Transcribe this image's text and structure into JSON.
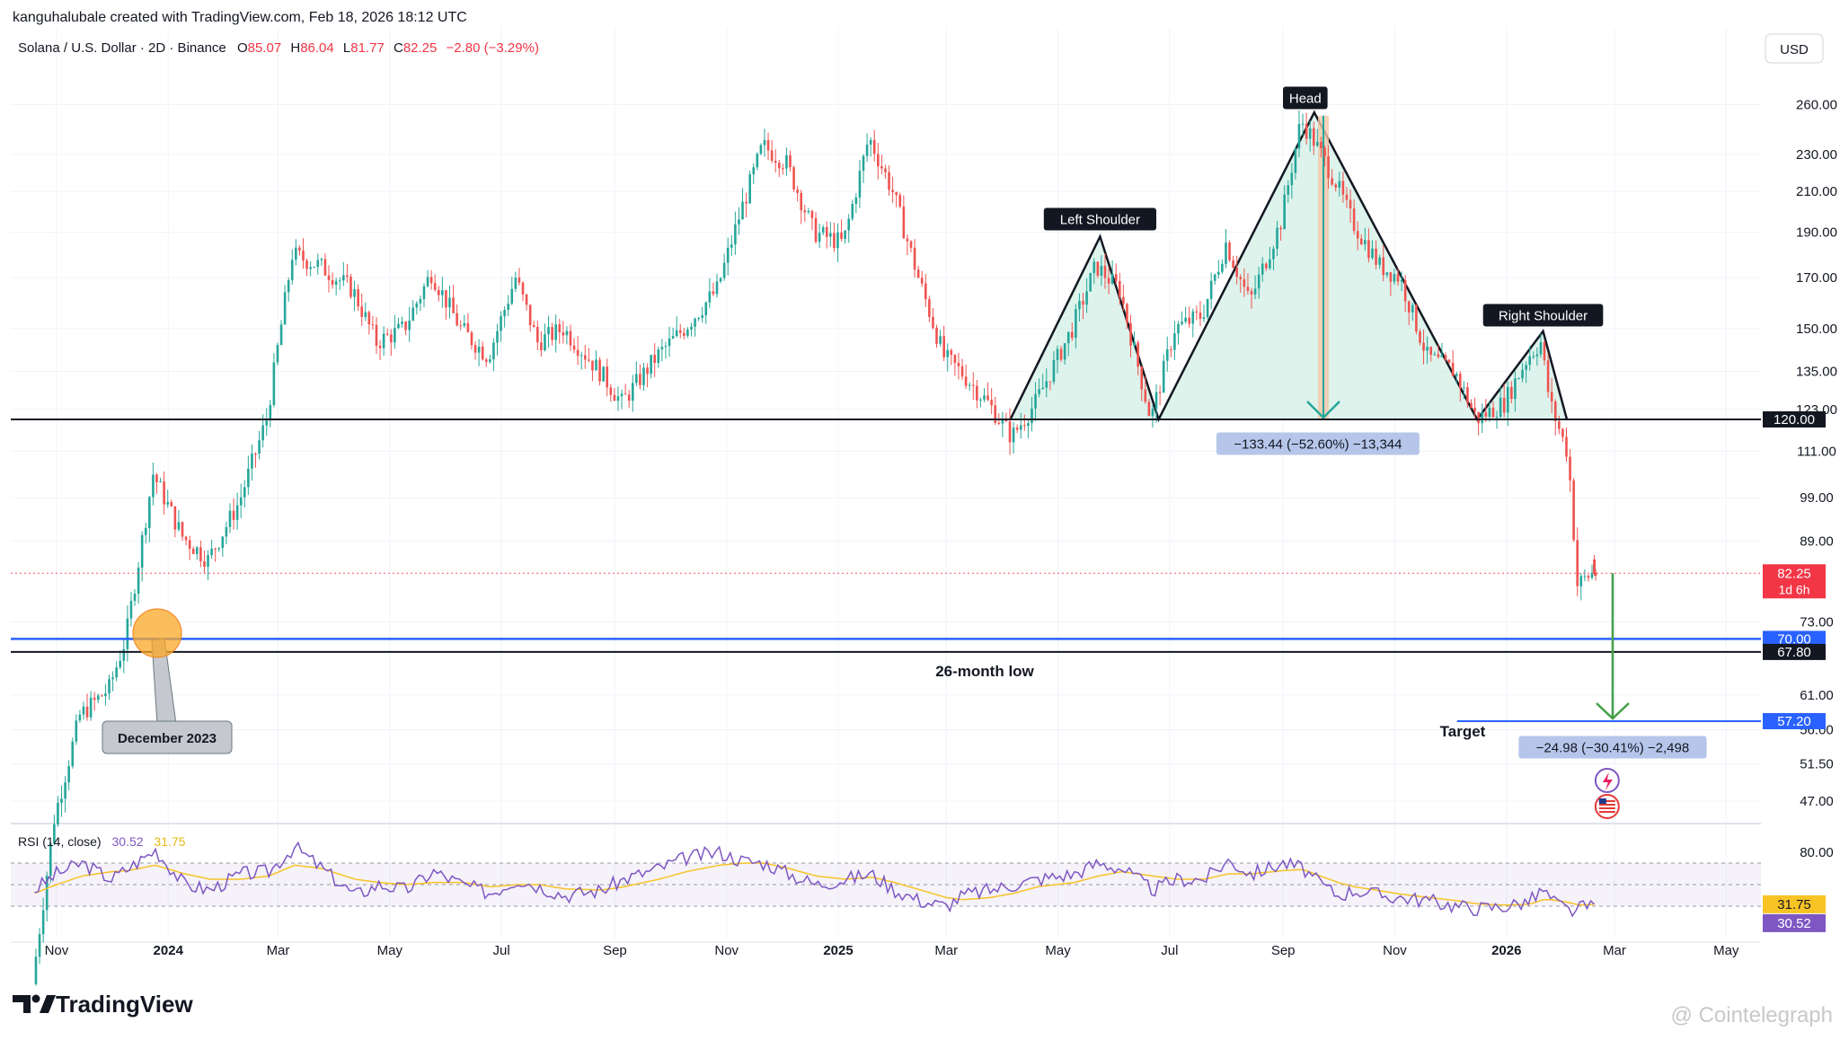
{
  "header": {
    "created_by": "kanguhalubale created with TradingView.com, Feb 18, 2026 18:12 UTC"
  },
  "legend": {
    "symbol": "Solana / U.S. Dollar · 2D · Binance",
    "open_label": "O",
    "open": "85.07",
    "high_label": "H",
    "high": "86.04",
    "low_label": "L",
    "low": "81.77",
    "close_label": "C",
    "close": "82.25",
    "change": "−2.80 (−3.29%)"
  },
  "currency_button": "USD",
  "rsi_legend": {
    "label": "RSI (14, close)",
    "rsi": "30.52",
    "ma": "31.75"
  },
  "price_labels": {
    "last_price": "82.25",
    "countdown": "1d 6h",
    "level_120": "120.00",
    "level_70": "70.00",
    "level_67": "67.80",
    "level_57": "57.20",
    "rsi_ma": "31.75",
    "rsi_val": "30.52"
  },
  "annotations": {
    "head": "Head",
    "left_shoulder": "Left Shoulder",
    "right_shoulder": "Right Shoulder",
    "measure_head": "−133.44 (−52.60%) −13,344",
    "measure_target": "−24.98 (−30.41%) −2,498",
    "low_label": "26-month low",
    "target_label": "Target",
    "callout": "December 2023"
  },
  "footer": {
    "brand": "TradingView",
    "watermark": "@ Cointelegraph"
  },
  "colors": {
    "up": "#26a69a",
    "down": "#ef5350",
    "blue_line": "#2962ff",
    "neckline": "#131722",
    "rsi": "#7e57c2",
    "rsi_ma": "#f7c325",
    "pattern_fill": "#cfeee4",
    "measure_box": "#b6c6ea"
  },
  "chart_data": [
    {
      "type": "line",
      "title": "Solana / U.S. Dollar · 2D · Binance",
      "series": [
        {
          "name": "Solana / U.S. Dollar",
          "x": [
            "2023-10-20",
            "2023-11-01",
            "2023-11-15",
            "2023-12-01",
            "2023-12-10",
            "2023-12-25",
            "2024-01-10",
            "2024-01-24",
            "2024-02-10",
            "2024-02-25",
            "2024-03-10",
            "2024-03-25",
            "2024-04-12",
            "2024-04-25",
            "2024-05-10",
            "2024-05-25",
            "2024-06-10",
            "2024-06-25",
            "2024-07-10",
            "2024-07-22",
            "2024-08-05",
            "2024-08-25",
            "2024-09-06",
            "2024-09-25",
            "2024-10-10",
            "2024-10-28",
            "2024-11-10",
            "2024-11-22",
            "2024-12-05",
            "2024-12-20",
            "2025-01-05",
            "2025-01-19",
            "2025-02-01",
            "2025-02-15",
            "2025-03-01",
            "2025-03-10",
            "2025-03-25",
            "2025-04-07",
            "2025-04-20",
            "2025-05-10",
            "2025-05-23",
            "2025-06-05",
            "2025-06-22",
            "2025-07-05",
            "2025-07-20",
            "2025-08-02",
            "2025-08-15",
            "2025-09-01",
            "2025-09-12",
            "2025-09-18",
            "2025-10-01",
            "2025-10-10",
            "2025-10-25",
            "2025-11-05",
            "2025-11-20",
            "2025-12-05",
            "2025-12-17",
            "2026-01-01",
            "2026-01-14",
            "2026-01-21",
            "2026-01-26",
            "2026-02-05",
            "2026-02-10",
            "2026-02-18"
          ],
          "values": [
            30,
            45,
            58,
            62,
            70,
            105,
            90,
            85,
            98,
            120,
            180,
            175,
            165,
            145,
            150,
            172,
            150,
            140,
            170,
            145,
            150,
            135,
            125,
            140,
            150,
            165,
            200,
            235,
            225,
            190,
            185,
            240,
            210,
            170,
            140,
            135,
            125,
            115,
            125,
            150,
            175,
            165,
            120,
            150,
            155,
            185,
            160,
            195,
            250,
            240,
            215,
            195,
            175,
            170,
            140,
            135,
            120,
            125,
            140,
            145,
            125,
            110,
            80,
            82.25
          ]
        }
      ],
      "ohlc_last": {
        "open": 85.07,
        "high": 86.04,
        "low": 81.77,
        "close": 82.25,
        "change": -2.8,
        "change_pct": -3.29
      },
      "xlabel": "",
      "ylabel": "",
      "y_scale": "log",
      "y_ticks": [
        260,
        230,
        210,
        190,
        170,
        150,
        135,
        123,
        111,
        99,
        89,
        73,
        61,
        56,
        51.5,
        47
      ],
      "x_ticks": [
        "Nov",
        "2024",
        "Mar",
        "May",
        "Jul",
        "Sep",
        "Nov",
        "2025",
        "Mar",
        "May",
        "Jul",
        "Sep",
        "Nov",
        "2026",
        "Mar",
        "May"
      ],
      "horizontal_levels": [
        120.0,
        70.0,
        67.8,
        57.2
      ],
      "annotations": [
        "Left Shoulder",
        "Head",
        "Right Shoulder",
        "26-month low",
        "Target",
        "December 2023"
      ],
      "measurements": [
        {
          "text": "−133.44 (−52.60%) −13,344",
          "change": -133.44,
          "change_pct": -52.6,
          "ticks": -13344
        },
        {
          "text": "−24.98 (−30.41%) −2,498",
          "change": -24.98,
          "change_pct": -30.41,
          "ticks": -2498
        }
      ],
      "grid": true,
      "legend": "top-left"
    },
    {
      "type": "line",
      "title": "RSI (14, close)",
      "series": [
        {
          "name": "RSI",
          "values": [
            45,
            60,
            70,
            55,
            65,
            82,
            50,
            45,
            60,
            62,
            85,
            65,
            40,
            50,
            45,
            62,
            50,
            42,
            55,
            48,
            40,
            45,
            55,
            65,
            75,
            80,
            72,
            70,
            60,
            50,
            55,
            60,
            45,
            35,
            30,
            40,
            45,
            50,
            55,
            60,
            70,
            65,
            45,
            55,
            55,
            72,
            60,
            70,
            65,
            55,
            40,
            45,
            40,
            38,
            35,
            30,
            28,
            30,
            35,
            45,
            35,
            25,
            28,
            30.52
          ]
        },
        {
          "name": "MA",
          "values": [
            42,
            50,
            58,
            62,
            63,
            68,
            60,
            55,
            55,
            58,
            68,
            65,
            55,
            52,
            50,
            52,
            52,
            48,
            50,
            50,
            46,
            45,
            48,
            55,
            62,
            68,
            70,
            70,
            65,
            58,
            55,
            57,
            52,
            45,
            38,
            36,
            38,
            42,
            48,
            52,
            58,
            62,
            58,
            55,
            55,
            60,
            60,
            63,
            64,
            60,
            52,
            48,
            44,
            41,
            38,
            35,
            32,
            31,
            32,
            36,
            36,
            33,
            31,
            31.75
          ]
        }
      ],
      "ylim": [
        0,
        100
      ],
      "y_ticks": [
        80.0
      ],
      "bands": [
        70,
        30
      ],
      "current": {
        "rsi": 30.52,
        "ma": 31.75
      },
      "legend": "top-left"
    }
  ]
}
